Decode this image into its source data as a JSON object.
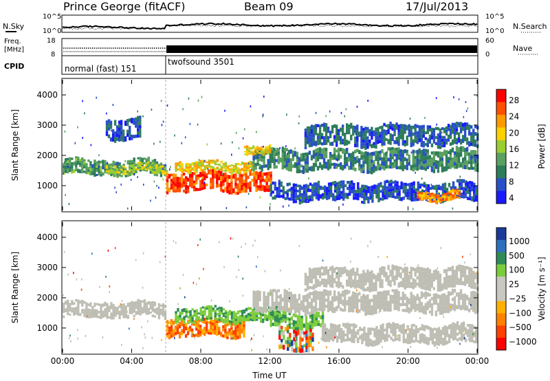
{
  "header": {
    "station": "Prince George (fitACF)",
    "beam": "Beam 09",
    "date": "17/Jul/2013"
  },
  "noise_panel": {
    "left_label": "N.Sky",
    "right_label": "N.Search",
    "ticks_left": [
      "10^5",
      "10^0"
    ],
    "ticks_right": [
      "10^5",
      "10^0"
    ]
  },
  "freq_panel": {
    "left_label_1": "Freq.",
    "left_label_2": "[MHz]",
    "right_label": "Nave",
    "ticks_left": [
      "18",
      "8"
    ],
    "ticks_right": [
      "60",
      "0"
    ]
  },
  "cpid_panel": {
    "label": "CPID",
    "modes": [
      {
        "name": "normal (fast) 151",
        "start_hour": 0,
        "end_hour": 6
      },
      {
        "name": "twofsound 3501",
        "start_hour": 6,
        "end_hour": 24
      }
    ]
  },
  "colors": {
    "power_scale": [
      "#1a1aff",
      "#2a50c8",
      "#2e7d5a",
      "#5aa060",
      "#9acd32",
      "#ffd000",
      "#ff9900",
      "#ff5000",
      "#ff0000"
    ],
    "velocity_scale": [
      "#1a3a9a",
      "#2e70c0",
      "#2e8b57",
      "#7ccd3c",
      "#c8c8c0",
      "#c8c8c0",
      "#ffb000",
      "#ff8000",
      "#ff4000",
      "#ff0000"
    ],
    "ground_scatter": "#bebeb4"
  },
  "chart_data": [
    {
      "type": "heatmap",
      "name": "power",
      "ylabel": "Slant Range [km]",
      "xlabel": "Time UT",
      "x_ticks": [
        "00:00",
        "04:00",
        "08:00",
        "12:00",
        "16:00",
        "20:00",
        "00:00"
      ],
      "x_range_hours": [
        0,
        24
      ],
      "y_ticks": [
        "1000",
        "2000",
        "3000",
        "4000"
      ],
      "y_range_km": [
        180,
        4500
      ],
      "colorbar_label": "Power [dB]",
      "colorbar_ticks": [
        "28",
        "24",
        "20",
        "16",
        "12",
        "8",
        "4"
      ],
      "colorbar_range": [
        0,
        30
      ],
      "regions": [
        {
          "t0": 0.0,
          "t1": 6.0,
          "r0": 1350,
          "r1": 1850,
          "level": 10
        },
        {
          "t0": 2.5,
          "t1": 6.0,
          "r0": 1400,
          "r1": 1700,
          "level": 15
        },
        {
          "t0": 6.0,
          "t1": 12.0,
          "r0": 800,
          "r1": 1450,
          "level": 26
        },
        {
          "t0": 6.5,
          "t1": 11.0,
          "r0": 1450,
          "r1": 1800,
          "level": 18
        },
        {
          "t0": 11.0,
          "t1": 24.0,
          "r0": 1500,
          "r1": 2200,
          "level": 9
        },
        {
          "t0": 10.5,
          "t1": 12.0,
          "r0": 2000,
          "r1": 2300,
          "level": 18
        },
        {
          "t0": 2.5,
          "t1": 4.5,
          "r0": 2500,
          "r1": 3200,
          "level": 6
        },
        {
          "t0": 14.0,
          "t1": 24.0,
          "r0": 2300,
          "r1": 3000,
          "level": 6
        },
        {
          "t0": 12.0,
          "t1": 24.0,
          "r0": 500,
          "r1": 1100,
          "level": 5
        },
        {
          "t0": 20.5,
          "t1": 23.0,
          "r0": 500,
          "r1": 800,
          "level": 22
        }
      ]
    },
    {
      "type": "heatmap",
      "name": "velocity",
      "ylabel": "Slant Range [km]",
      "xlabel": "Time UT",
      "x_ticks": [
        "00:00",
        "04:00",
        "08:00",
        "12:00",
        "16:00",
        "20:00",
        "00:00"
      ],
      "x_range_hours": [
        0,
        24
      ],
      "y_ticks": [
        "1000",
        "2000",
        "3000",
        "4000"
      ],
      "y_range_km": [
        180,
        4500
      ],
      "colorbar_label": "Velocity [m s⁻¹]",
      "colorbar_ticks": [
        "1000",
        "500",
        "100",
        "25",
        "−25",
        "−100",
        "−500",
        "−1000"
      ],
      "regions": [
        {
          "t0": 0.0,
          "t1": 6.0,
          "r0": 1350,
          "r1": 1850,
          "kind": "ground"
        },
        {
          "t0": 6.0,
          "t1": 10.5,
          "r0": 700,
          "r1": 1300,
          "kind": "neg_high"
        },
        {
          "t0": 6.5,
          "t1": 12.5,
          "r0": 1200,
          "r1": 1650,
          "kind": "pos_low"
        },
        {
          "t0": 12.0,
          "t1": 15.0,
          "r0": 1000,
          "r1": 1500,
          "kind": "pos_low"
        },
        {
          "t0": 11.0,
          "t1": 24.0,
          "r0": 1500,
          "r1": 2200,
          "kind": "ground"
        },
        {
          "t0": 14.0,
          "t1": 24.0,
          "r0": 2300,
          "r1": 3000,
          "kind": "ground"
        },
        {
          "t0": 15.0,
          "t1": 24.0,
          "r0": 500,
          "r1": 1100,
          "kind": "ground"
        },
        {
          "t0": 12.5,
          "t1": 14.5,
          "r0": 250,
          "r1": 1000,
          "kind": "mixed"
        }
      ]
    }
  ]
}
